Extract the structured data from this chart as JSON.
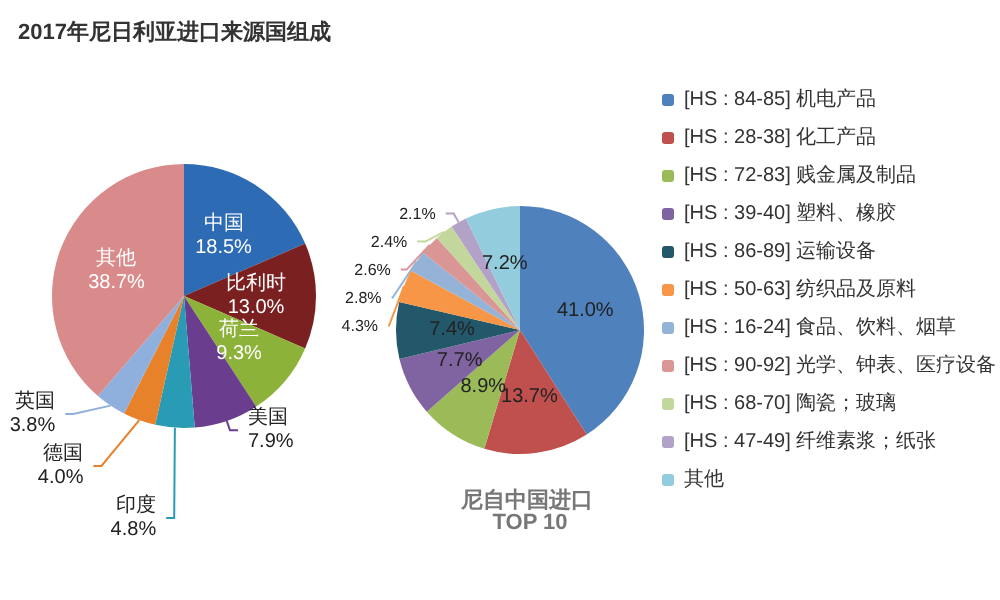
{
  "chart_data": [
    {
      "type": "pie",
      "title": "2017年尼日利亚进口来源国组成",
      "categories": [
        "中国",
        "比利时",
        "荷兰",
        "美国",
        "印度",
        "德国",
        "英国",
        "其他"
      ],
      "values": [
        18.5,
        13.0,
        9.3,
        7.9,
        4.8,
        4.0,
        3.8,
        38.7
      ],
      "value_labels": [
        "18.5%",
        "13.0%",
        "9.3%",
        "7.9%",
        "4.8%",
        "4.0%",
        "3.8%",
        "38.7%"
      ],
      "colors": [
        "#2e6bb5",
        "#7a2020",
        "#8db23a",
        "#6b3d8f",
        "#2a9bb5",
        "#e8822a",
        "#8fb0dd",
        "#d98b8b"
      ],
      "legend": false
    },
    {
      "type": "pie",
      "title": "尼自中国进口 TOP 10",
      "categories": [
        "[HS : 84-85] 机电产品",
        "[HS : 28-38] 化工产品",
        "[HS : 72-83] 贱金属及制品",
        "[HS : 39-40] 塑料、橡胶",
        "[HS : 86-89] 运输设备",
        "[HS : 50-63] 纺织品及原料",
        "[HS : 16-24] 食品、饮料、烟草",
        "[HS : 90-92] 光学、钟表、医疗设备",
        "[HS : 68-70] 陶瓷；玻璃",
        "[HS : 47-49] 纤维素浆；纸张",
        "其他"
      ],
      "values": [
        41.0,
        13.7,
        8.9,
        7.7,
        7.4,
        4.3,
        2.8,
        2.6,
        2.4,
        2.1,
        7.2
      ],
      "value_labels": [
        "41.0%",
        "13.7%",
        "8.9%",
        "7.7%",
        "7.4%",
        "4.3%",
        "2.8%",
        "2.6%",
        "2.4%",
        "2.1%",
        "7.2%"
      ],
      "colors": [
        "#4f81bd",
        "#c0504d",
        "#9bbb59",
        "#8064a2",
        "#23586a",
        "#f79646",
        "#95b3d7",
        "#d99694",
        "#c3d69b",
        "#b3a2c7",
        "#93cddd"
      ],
      "legend": "right"
    }
  ]
}
